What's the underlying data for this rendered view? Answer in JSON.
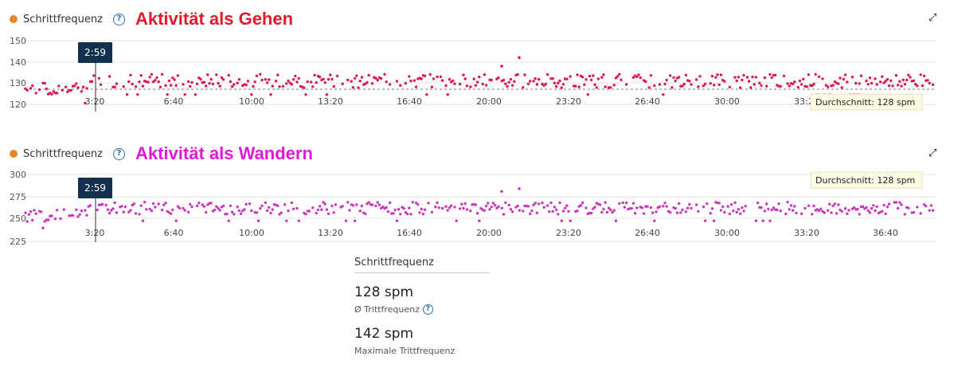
{
  "panels": [
    {
      "metric_label": "Schrittfrequenz",
      "annotation": "Aktivität als Gehen",
      "annotation_color": "#e11a2c",
      "series_color": "#e0174f",
      "tooltip_time": "2:59",
      "average_label": "Durchschnitt: 128 spm"
    },
    {
      "metric_label": "Schrittfrequenz",
      "annotation": "Aktivität als Wandern",
      "annotation_color": "#e018d8",
      "series_color": "#c83ab8",
      "tooltip_time": "2:59",
      "average_label": "Durchschnitt: 128 spm"
    }
  ],
  "chart_data": [
    {
      "type": "scatter",
      "title": "Schrittfrequenz",
      "ylim": [
        120,
        150
      ],
      "y_ticks": [
        150,
        140,
        130,
        120
      ],
      "x_ticks": [
        "3:20",
        "6:40",
        "10:00",
        "13:20",
        "16:40",
        "20:00",
        "23:20",
        "26:40",
        "30:00",
        "33:20",
        "36:40"
      ],
      "average": 128,
      "cursor_time": "2:59",
      "max": 142
    },
    {
      "type": "scatter",
      "title": "Schrittfrequenz",
      "ylim": [
        225,
        300
      ],
      "y_ticks": [
        300,
        275,
        250,
        225
      ],
      "x_ticks": [
        "3:20",
        "6:40",
        "10:00",
        "13:20",
        "16:40",
        "20:00",
        "23:20",
        "26:40",
        "30:00",
        "33:20",
        "36:40"
      ],
      "average": 128,
      "cursor_time": "2:59",
      "max": 284
    }
  ],
  "stats": {
    "title": "Schrittfrequenz",
    "items": [
      {
        "value": "128 spm",
        "label": "Ø Trittfrequenz",
        "has_help": true
      },
      {
        "value": "142 spm",
        "label": "Maximale Trittfrequenz",
        "has_help": false
      }
    ]
  },
  "icons": {
    "help": "help-circle-icon",
    "expand": "expand-arrows-icon",
    "series_dot": "orange-dot-icon"
  }
}
